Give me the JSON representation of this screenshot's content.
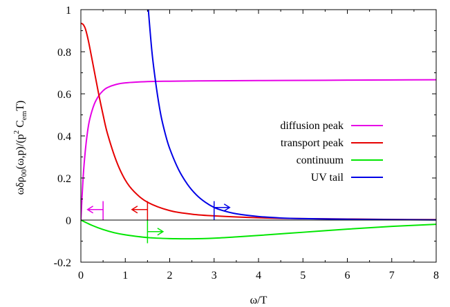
{
  "chart_data": {
    "type": "line",
    "xlabel": "ω/T",
    "ylabel": {
      "a": "ωδρ",
      "b": "00",
      "c": "(ω,p)/(p",
      "d": "2",
      "e": " C",
      "f": "em",
      "g": "T)"
    },
    "xlim": [
      0,
      8
    ],
    "ylim": [
      -0.2,
      1.0
    ],
    "xticks": [
      0,
      1,
      2,
      3,
      4,
      5,
      6,
      7,
      8
    ],
    "xtick_labels": [
      "0",
      "1",
      "2",
      "3",
      "4",
      "5",
      "6",
      "7",
      "8"
    ],
    "yticks": [
      -0.2,
      0,
      0.2,
      0.4,
      0.6,
      0.8,
      1.0
    ],
    "ytick_labels": [
      "-0.2",
      "0",
      "0.2",
      "0.4",
      "0.6",
      "0.8",
      "1"
    ],
    "legend_position": "right-middle",
    "series": [
      {
        "name": "diffusion peak",
        "color": "#e600e6",
        "x": [
          0,
          0.05,
          0.1,
          0.15,
          0.2,
          0.3,
          0.4,
          0.5,
          0.6,
          0.8,
          1.0,
          1.5,
          2.0,
          3.0,
          4.0,
          5.0,
          6.0,
          7.0,
          8.0
        ],
        "y": [
          0,
          0.2,
          0.33,
          0.42,
          0.48,
          0.55,
          0.59,
          0.615,
          0.63,
          0.645,
          0.652,
          0.658,
          0.66,
          0.662,
          0.663,
          0.664,
          0.665,
          0.666,
          0.667
        ]
      },
      {
        "name": "transport peak",
        "color": "#e60000",
        "x": [
          0,
          0.05,
          0.1,
          0.15,
          0.2,
          0.3,
          0.4,
          0.5,
          0.6,
          0.8,
          1.0,
          1.2,
          1.5,
          2.0,
          2.5,
          3.0,
          4.0,
          5.0,
          6.0,
          7.0,
          8.0
        ],
        "y": [
          0.935,
          0.93,
          0.91,
          0.87,
          0.82,
          0.71,
          0.6,
          0.5,
          0.41,
          0.28,
          0.19,
          0.135,
          0.085,
          0.045,
          0.028,
          0.02,
          0.011,
          0.007,
          0.005,
          0.003,
          0.002
        ]
      },
      {
        "name": "continuum",
        "color": "#00e600",
        "x": [
          0,
          0.25,
          0.5,
          0.75,
          1.0,
          1.5,
          2.0,
          2.5,
          3.0,
          3.5,
          4.0,
          5.0,
          6.0,
          7.0,
          8.0
        ],
        "y": [
          0,
          -0.025,
          -0.045,
          -0.06,
          -0.07,
          -0.083,
          -0.088,
          -0.089,
          -0.086,
          -0.08,
          -0.073,
          -0.058,
          -0.043,
          -0.03,
          -0.02
        ]
      },
      {
        "name": "UV tail",
        "color": "#0000e6",
        "x": [
          1.5,
          1.6,
          1.7,
          1.8,
          1.9,
          2.0,
          2.2,
          2.4,
          2.6,
          2.8,
          3.0,
          3.2,
          3.5,
          4.0,
          4.5,
          5.0,
          6.0,
          7.0,
          8.0
        ],
        "y": [
          1.05,
          0.8,
          0.63,
          0.5,
          0.41,
          0.34,
          0.24,
          0.17,
          0.12,
          0.085,
          0.06,
          0.045,
          0.03,
          0.017,
          0.01,
          0.007,
          0.004,
          0.002,
          0.001
        ]
      }
    ],
    "markers": [
      {
        "series": "diffusion peak",
        "color": "#e600e6",
        "x": 0.5,
        "y_from": 0.0,
        "y_to": 0.09,
        "arrow_y": 0.05,
        "direction": "left",
        "arrow_len": 0.35
      },
      {
        "series": "transport peak",
        "color": "#e60000",
        "x": 1.5,
        "y_from": 0.0,
        "y_to": 0.09,
        "arrow_y": 0.05,
        "direction": "left",
        "arrow_len": 0.35
      },
      {
        "series": "continuum",
        "color": "#00e600",
        "x": 1.5,
        "y_from": -0.11,
        "y_to": 0.0,
        "arrow_y": -0.055,
        "direction": "right",
        "arrow_len": 0.35
      },
      {
        "series": "UV tail",
        "color": "#0000e6",
        "x": 3.0,
        "y_from": 0.0,
        "y_to": 0.09,
        "arrow_y": 0.06,
        "direction": "right",
        "arrow_len": 0.35
      }
    ]
  }
}
